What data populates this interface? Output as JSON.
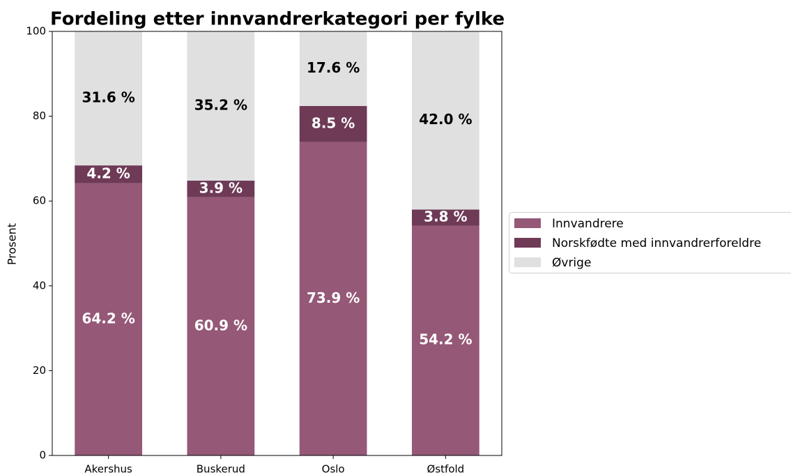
{
  "chart_data": {
    "type": "stacked_bar",
    "title": "Fordeling etter innvandrerkategori per fylke",
    "y_label": "Prosent",
    "categories": [
      "Akershus",
      "Buskerud",
      "Oslo",
      "Østfold"
    ],
    "series": [
      {
        "name": "Innvandrere",
        "color": "#955877",
        "label_color": "#ffffff",
        "values": [
          64.2,
          60.9,
          73.9,
          54.2
        ],
        "value_labels": [
          "64.2 %",
          "60.9 %",
          "73.9 %",
          "54.2 %"
        ]
      },
      {
        "name": "Norskfødte med innvandrerforeldre",
        "color": "#6e3a56",
        "label_color": "#ffffff",
        "values": [
          4.2,
          3.9,
          8.5,
          3.8
        ],
        "value_labels": [
          "4.2 %",
          "3.9 %",
          "8.5 %",
          "3.8 %"
        ]
      },
      {
        "name": "Øvrige",
        "color": "#e0e0e0",
        "label_color": "#000000",
        "values": [
          31.6,
          35.2,
          17.6,
          42.0
        ],
        "value_labels": [
          "31.6 %",
          "35.2 %",
          "17.6 %",
          "42.0 %"
        ]
      }
    ],
    "ylim": [
      0,
      100
    ],
    "yticks": [
      0,
      20,
      40,
      60,
      80,
      100
    ],
    "grid": false,
    "legend": "right"
  }
}
